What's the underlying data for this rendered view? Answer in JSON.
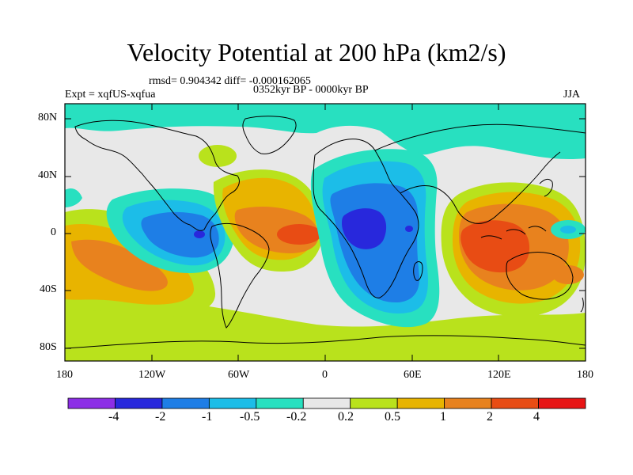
{
  "title": "Velocity Potential at 200 hPa (km2/s)",
  "stats": "rmsd= 0.904342 diff= -0.000162065",
  "experiment": "Expt = xqfUS-xqfua",
  "period": "0352kyr BP - 0000kyr BP",
  "season": "JJA",
  "lat_ticks": [
    "80N",
    "40N",
    "0",
    "40S",
    "80S"
  ],
  "lon_ticks": [
    "180",
    "120W",
    "60W",
    "0",
    "60E",
    "120E",
    "180"
  ],
  "colorbar": {
    "labels": [
      "-4",
      "-2",
      "-1",
      "-0.5",
      "-0.2",
      "0.2",
      "0.5",
      "1",
      "2",
      "4"
    ],
    "colors": [
      "#8c2ee6",
      "#2828dc",
      "#1e7ee6",
      "#1cbde8",
      "#28e0c0",
      "#e8e8e8",
      "#b9e21c",
      "#e8b400",
      "#e8821e",
      "#e84c14",
      "#e81414"
    ]
  }
}
